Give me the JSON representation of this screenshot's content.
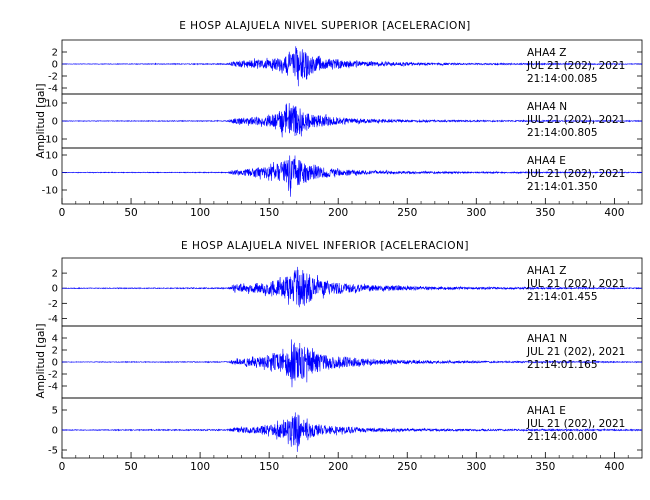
{
  "chart_data": [
    {
      "type": "line",
      "title": "E HOSP ALAJUELA NIVEL SUPERIOR [ACELERACION]",
      "ylabel": "Amplitud [gal]",
      "xlim": [
        0,
        420
      ],
      "x_ticks": [
        0,
        50,
        100,
        150,
        200,
        250,
        300,
        350,
        400
      ],
      "line_color": "#0000ff",
      "series": [
        {
          "name": "AHA4 Z",
          "date": "JUL 21 (202), 2021",
          "time": "21:14:00.085",
          "ylim": [
            -5,
            4
          ],
          "y_ticks": [
            -4,
            -2,
            0,
            2
          ],
          "envelope": [
            [
              0,
              0.05
            ],
            [
              120,
              0.1
            ],
            [
              125,
              0.7
            ],
            [
              140,
              1.0
            ],
            [
              150,
              1.1
            ],
            [
              160,
              1.8
            ],
            [
              165,
              2.5
            ],
            [
              170,
              4
            ],
            [
              175,
              3.5
            ],
            [
              180,
              2.5
            ],
            [
              190,
              1.2
            ],
            [
              200,
              1
            ],
            [
              210,
              0.7
            ],
            [
              230,
              0.45
            ],
            [
              260,
              0.3
            ],
            [
              300,
              0.15
            ],
            [
              420,
              0.08
            ]
          ]
        },
        {
          "name": "AHA4 N",
          "date": "JUL 21 (202), 2021",
          "time": "21:14:00.805",
          "ylim": [
            -15,
            15
          ],
          "y_ticks": [
            -10,
            0,
            10
          ],
          "envelope": [
            [
              0,
              0.2
            ],
            [
              120,
              0.3
            ],
            [
              125,
              2
            ],
            [
              140,
              3
            ],
            [
              150,
              4
            ],
            [
              160,
              10
            ],
            [
              165,
              13
            ],
            [
              170,
              12
            ],
            [
              175,
              9
            ],
            [
              180,
              6
            ],
            [
              190,
              4
            ],
            [
              200,
              3
            ],
            [
              220,
              1.5
            ],
            [
              260,
              0.8
            ],
            [
              300,
              0.5
            ],
            [
              420,
              0.3
            ]
          ]
        },
        {
          "name": "AHA4 E",
          "date": "JUL 21 (202), 2021",
          "time": "21:14:01.350",
          "ylim": [
            -18,
            14
          ],
          "y_ticks": [
            -10,
            0,
            10
          ],
          "envelope": [
            [
              0,
              0.2
            ],
            [
              120,
              0.3
            ],
            [
              125,
              2
            ],
            [
              140,
              3.5
            ],
            [
              150,
              5
            ],
            [
              160,
              9
            ],
            [
              165,
              15
            ],
            [
              170,
              12
            ],
            [
              175,
              9
            ],
            [
              180,
              6
            ],
            [
              190,
              4
            ],
            [
              200,
              3
            ],
            [
              220,
              1.5
            ],
            [
              260,
              0.8
            ],
            [
              300,
              0.5
            ],
            [
              420,
              0.3
            ]
          ]
        }
      ]
    },
    {
      "type": "line",
      "title": "E HOSP ALAJUELA NIVEL INFERIOR [ACELERACION]",
      "ylabel": "Amplitud [gal]",
      "xlim": [
        0,
        420
      ],
      "x_ticks": [
        0,
        50,
        100,
        150,
        200,
        250,
        300,
        350,
        400
      ],
      "line_color": "#0000ff",
      "series": [
        {
          "name": "AHA1 Z",
          "date": "JUL 21 (202), 2021",
          "time": "21:14:01.455",
          "ylim": [
            -5,
            4
          ],
          "y_ticks": [
            -4,
            -2,
            0,
            2
          ],
          "envelope": [
            [
              0,
              0.05
            ],
            [
              120,
              0.1
            ],
            [
              125,
              0.6
            ],
            [
              140,
              0.9
            ],
            [
              150,
              1.1
            ],
            [
              160,
              1.8
            ],
            [
              165,
              2.5
            ],
            [
              170,
              3.8
            ],
            [
              175,
              3.5
            ],
            [
              180,
              2.5
            ],
            [
              190,
              1.3
            ],
            [
              200,
              1
            ],
            [
              210,
              0.8
            ],
            [
              230,
              0.5
            ],
            [
              260,
              0.3
            ],
            [
              300,
              0.2
            ],
            [
              420,
              0.08
            ]
          ]
        },
        {
          "name": "AHA1 N",
          "date": "JUL 21 (202), 2021",
          "time": "21:14:01.165",
          "ylim": [
            -6,
            6
          ],
          "y_ticks": [
            -4,
            -2,
            0,
            2,
            4
          ],
          "envelope": [
            [
              0,
              0.05
            ],
            [
              120,
              0.1
            ],
            [
              125,
              0.6
            ],
            [
              140,
              1.0
            ],
            [
              150,
              1.5
            ],
            [
              160,
              2.5
            ],
            [
              165,
              4
            ],
            [
              170,
              5
            ],
            [
              175,
              4
            ],
            [
              180,
              3
            ],
            [
              190,
              2
            ],
            [
              200,
              1.5
            ],
            [
              220,
              0.7
            ],
            [
              260,
              0.35
            ],
            [
              300,
              0.2
            ],
            [
              420,
              0.08
            ]
          ]
        },
        {
          "name": "AHA1 E",
          "date": "JUL 21 (202), 2021",
          "time": "21:14:00.000",
          "ylim": [
            -7,
            8
          ],
          "y_ticks": [
            -5,
            0,
            5
          ],
          "envelope": [
            [
              0,
              0.1
            ],
            [
              120,
              0.2
            ],
            [
              125,
              0.7
            ],
            [
              140,
              1.2
            ],
            [
              150,
              1.8
            ],
            [
              160,
              3
            ],
            [
              165,
              4.5
            ],
            [
              170,
              7
            ],
            [
              175,
              4
            ],
            [
              180,
              2.8
            ],
            [
              190,
              1.8
            ],
            [
              200,
              1.3
            ],
            [
              220,
              0.7
            ],
            [
              260,
              0.4
            ],
            [
              300,
              0.3
            ],
            [
              420,
              0.2
            ]
          ]
        }
      ]
    }
  ]
}
